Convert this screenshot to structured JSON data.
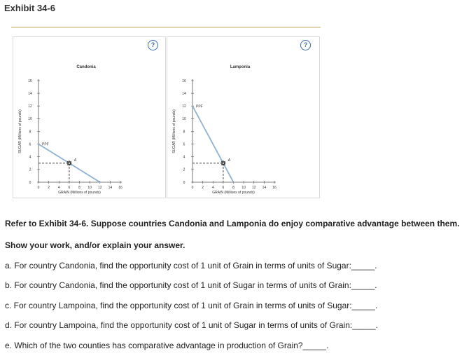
{
  "header": {
    "title": "Exhibit 34-6"
  },
  "help_icon": {
    "symbol": "?",
    "color": "#3a6fb0"
  },
  "chart_data": [
    {
      "type": "line",
      "title": "Candonia",
      "xlabel": "GRAIN (Millions of pounds)",
      "ylabel": "SUGAR (Millions of pounds)",
      "xlim": [
        0,
        16
      ],
      "ylim": [
        0,
        16
      ],
      "xticks": [
        "0",
        "2",
        "4",
        "6",
        "8",
        "10",
        "12",
        "14",
        "16"
      ],
      "yticks": [
        "0",
        "2",
        "4",
        "6",
        "8",
        "10",
        "12",
        "14",
        "16"
      ],
      "grid": false,
      "series": [
        {
          "name": "PPF",
          "color": "#8fb1d4",
          "x": [
            0,
            12
          ],
          "y": [
            6,
            0
          ]
        }
      ],
      "point": {
        "name": "A",
        "x": 6,
        "y": 3
      }
    },
    {
      "type": "line",
      "title": "Lamponia",
      "xlabel": "GRAIN (Millions of pounds)",
      "ylabel": "SUGAR (Millions of pounds)",
      "xlim": [
        0,
        16
      ],
      "ylim": [
        0,
        16
      ],
      "xticks": [
        "0",
        "2",
        "4",
        "6",
        "8",
        "10",
        "12",
        "14",
        "16"
      ],
      "yticks": [
        "0",
        "2",
        "4",
        "6",
        "8",
        "10",
        "12",
        "14",
        "16"
      ],
      "grid": false,
      "series": [
        {
          "name": "PPF",
          "color": "#8fb1d4",
          "x": [
            0,
            8
          ],
          "y": [
            12,
            0
          ]
        }
      ],
      "point": {
        "name": "A",
        "x": 6,
        "y": 3
      }
    }
  ],
  "questions": {
    "intro": "Refer to Exhibit 34-6. Suppose countries Candonia and Lamponia do enjoy comparative advantage between them.",
    "instruction": "Show your work, and/or explain your answer.",
    "a": "a. For country Candonia, find the opportunity cost of 1 unit of Grain in terms of units of Sugar:_____.",
    "b": "b. For country Candonia, find the opportunity cost of 1 unit of Sugar in terms of units of Grain:_____.",
    "c": "c. For country Lampoina, find the opportunity cost of 1 unit of Grain in terms of units of Sugar:_____.",
    "d": "d. For country Lampoina, find the opportunity cost of 1 unit of Sugar in terms of units of Grain:_____.",
    "e": "e. Which of the two counties has comparative advantage in production of Grain?_____."
  }
}
